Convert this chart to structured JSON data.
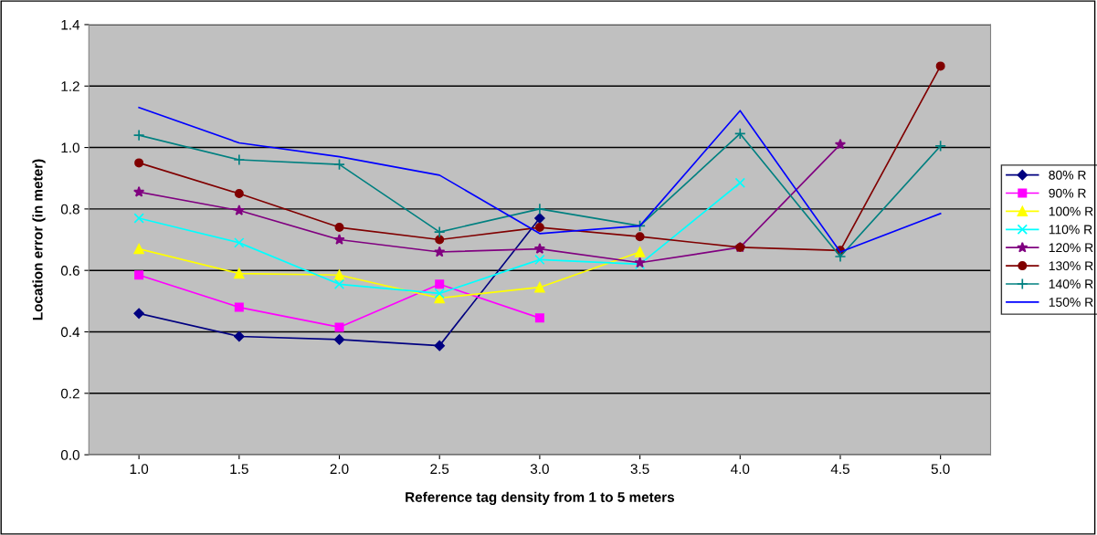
{
  "chart_data": {
    "type": "line",
    "xlabel": "Reference tag density from 1 to 5 meters",
    "ylabel": "Location error (in meter)",
    "categories": [
      "1.0",
      "1.5",
      "2.0",
      "2.5",
      "3.0",
      "3.5",
      "4.0",
      "4.5",
      "5.0"
    ],
    "ylim": [
      0,
      1.4
    ],
    "yticks": [
      {
        "value": 0,
        "label": "0.0"
      },
      {
        "value": 0.2,
        "label": "0.2"
      },
      {
        "value": 0.4,
        "label": "0.4"
      },
      {
        "value": 0.6,
        "label": "0.6"
      },
      {
        "value": 0.8,
        "label": "0.8"
      },
      {
        "value": 1.0,
        "label": "1.0"
      },
      {
        "value": 1.2,
        "label": "1.2"
      },
      {
        "value": 1.4,
        "label": "1.4"
      }
    ],
    "grid": "y",
    "legend": "right",
    "series": [
      {
        "name": "80% R",
        "color": "#000080",
        "marker": "diamond",
        "values": [
          0.46,
          0.385,
          0.375,
          0.355,
          0.77,
          null,
          null,
          null,
          null
        ]
      },
      {
        "name": "90% R",
        "color": "#ff00ff",
        "marker": "square",
        "values": [
          0.585,
          0.48,
          0.415,
          0.555,
          0.445,
          null,
          null,
          null,
          null
        ]
      },
      {
        "name": "100% R",
        "color": "#ffff00",
        "marker": "triangle",
        "values": [
          0.67,
          0.59,
          0.585,
          0.51,
          0.545,
          0.66,
          null,
          null,
          null
        ]
      },
      {
        "name": "110% R",
        "color": "#00ffff",
        "marker": "cross",
        "values": [
          0.77,
          0.69,
          0.555,
          0.525,
          0.635,
          0.62,
          0.885,
          null,
          null
        ]
      },
      {
        "name": "120% R",
        "color": "#800080",
        "marker": "star",
        "values": [
          0.855,
          0.795,
          0.7,
          0.66,
          0.67,
          0.625,
          0.675,
          1.01,
          null
        ]
      },
      {
        "name": "130% R",
        "color": "#800000",
        "marker": "circle",
        "values": [
          0.95,
          0.85,
          0.74,
          0.7,
          0.74,
          0.71,
          0.675,
          0.665,
          1.265
        ]
      },
      {
        "name": "140% R",
        "color": "#008080",
        "marker": "plus",
        "values": [
          1.04,
          0.96,
          0.945,
          0.725,
          0.8,
          0.745,
          1.045,
          0.645,
          1.005
        ]
      },
      {
        "name": "150% R",
        "color": "#0000ff",
        "marker": "none",
        "values": [
          1.13,
          1.015,
          0.97,
          0.91,
          0.72,
          0.745,
          1.12,
          0.66,
          0.785
        ]
      }
    ]
  }
}
